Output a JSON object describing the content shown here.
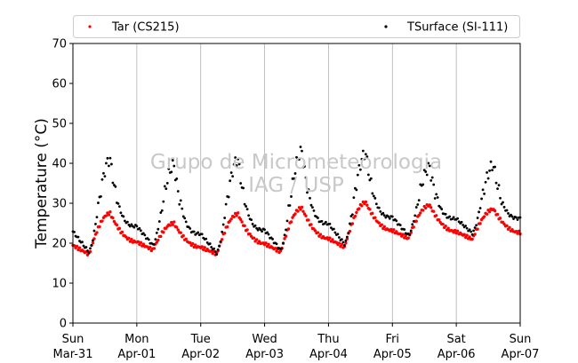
{
  "chart_data": {
    "type": "scatter",
    "title": "",
    "xlabel": "",
    "ylabel": "Temperature (°C)",
    "ylim": [
      0,
      70
    ],
    "yticks": [
      0,
      10,
      20,
      30,
      40,
      50,
      60,
      70
    ],
    "xlim": [
      "2018-03-31",
      "2018-04-07"
    ],
    "xticks": [
      {
        "day": "Sun",
        "date": "Mar-31"
      },
      {
        "day": "Mon",
        "date": "Apr-01"
      },
      {
        "day": "Tue",
        "date": "Apr-02"
      },
      {
        "day": "Wed",
        "date": "Apr-03"
      },
      {
        "day": "Thu",
        "date": "Apr-04"
      },
      {
        "day": "Fri",
        "date": "Apr-05"
      },
      {
        "day": "Sat",
        "date": "Apr-06"
      },
      {
        "day": "Sun",
        "date": "Apr-07"
      }
    ],
    "grid": "vertical",
    "legend_position": "top",
    "watermark": [
      "Grupo de Micrometeorologia",
      "IAG / USP"
    ],
    "series": [
      {
        "name": "Tar (CS215)",
        "color": "#ff0000",
        "daily": [
          {
            "date": "2018-03-31",
            "min": 17.2,
            "max": 27.5
          },
          {
            "date": "2018-04-01",
            "min": 18.3,
            "max": 25.0
          },
          {
            "date": "2018-04-02",
            "min": 17.3,
            "max": 27.3
          },
          {
            "date": "2018-04-03",
            "min": 17.8,
            "max": 28.8
          },
          {
            "date": "2018-04-04",
            "min": 19.0,
            "max": 30.2
          },
          {
            "date": "2018-04-05",
            "min": 21.2,
            "max": 29.5
          },
          {
            "date": "2018-04-06",
            "min": 21.0,
            "max": 28.5
          }
        ]
      },
      {
        "name": "TSurface (SI-111)",
        "color": "#000000",
        "daily": [
          {
            "date": "2018-03-31",
            "min": 17.8,
            "max": 41.0
          },
          {
            "date": "2018-04-01",
            "min": 19.5,
            "max": 39.5
          },
          {
            "date": "2018-04-02",
            "min": 17.5,
            "max": 41.0
          },
          {
            "date": "2018-04-03",
            "min": 18.3,
            "max": 43.0
          },
          {
            "date": "2018-04-04",
            "min": 19.8,
            "max": 42.5
          },
          {
            "date": "2018-04-05",
            "min": 22.0,
            "max": 39.0
          },
          {
            "date": "2018-04-06",
            "min": 22.5,
            "max": 39.5
          }
        ]
      }
    ]
  }
}
